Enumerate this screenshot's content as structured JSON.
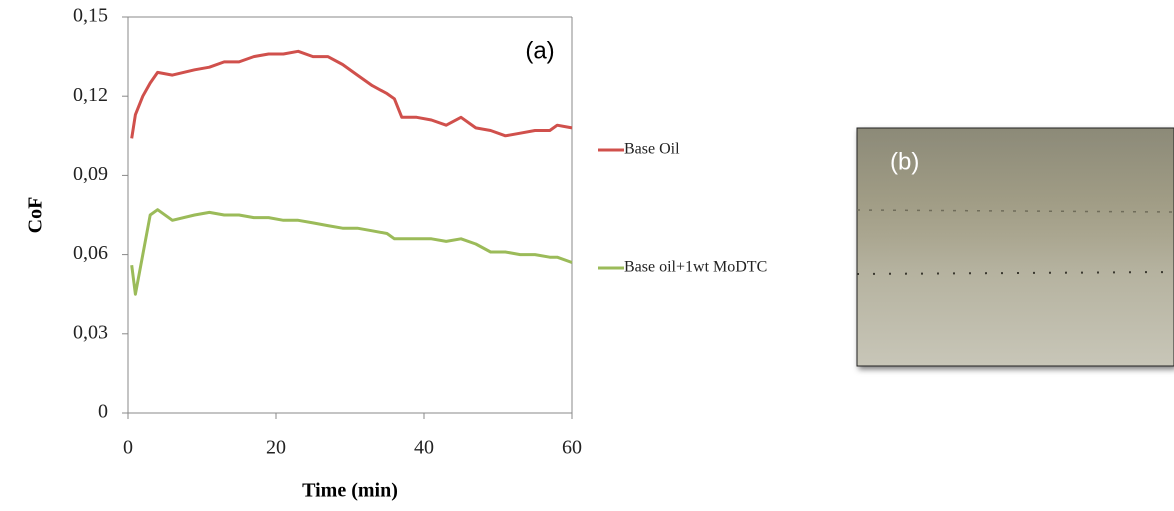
{
  "chart_data": {
    "type": "line",
    "x_label": "Time (min)",
    "y_label": "CoF",
    "panel_a_label": "(a)",
    "panel_b_label": "(b)",
    "x": [
      0.5,
      1,
      2,
      3,
      4,
      6,
      9,
      11,
      13,
      15,
      17,
      19,
      21,
      23,
      25,
      27,
      29,
      31,
      33,
      35,
      36,
      37,
      39,
      41,
      43,
      45,
      47,
      49,
      51,
      53,
      55,
      57,
      58,
      60
    ],
    "series": [
      {
        "name": "Base Oil",
        "color": "#d0504c",
        "values": [
          0.104,
          0.113,
          0.12,
          0.125,
          0.129,
          0.128,
          0.13,
          0.131,
          0.133,
          0.133,
          0.135,
          0.136,
          0.136,
          0.137,
          0.135,
          0.135,
          0.132,
          0.128,
          0.124,
          0.121,
          0.119,
          0.112,
          0.112,
          0.111,
          0.109,
          0.112,
          0.108,
          0.107,
          0.105,
          0.106,
          0.107,
          0.107,
          0.109,
          0.108
        ]
      },
      {
        "name": "Base oil+1wt MoDTC",
        "color": "#9bbb59",
        "values": [
          0.056,
          0.045,
          0.06,
          0.075,
          0.077,
          0.073,
          0.075,
          0.076,
          0.075,
          0.075,
          0.074,
          0.074,
          0.073,
          0.073,
          0.072,
          0.071,
          0.07,
          0.07,
          0.069,
          0.068,
          0.066,
          0.066,
          0.066,
          0.066,
          0.065,
          0.066,
          0.064,
          0.061,
          0.061,
          0.06,
          0.06,
          0.059,
          0.059,
          0.057
        ]
      }
    ],
    "xlim": [
      0,
      60
    ],
    "xticks": [
      0,
      20,
      40,
      60
    ],
    "ylim": [
      0,
      0.15
    ],
    "yticks": [
      0,
      {
        "value": 0.03,
        "label": "0,03"
      },
      {
        "value": 0.06,
        "label": "0,06"
      },
      {
        "value": 0.09,
        "label": "0,09"
      },
      {
        "value": 0.12,
        "label": "0,12"
      },
      {
        "value": 0.15,
        "label": "0,15"
      }
    ],
    "grid": false
  }
}
